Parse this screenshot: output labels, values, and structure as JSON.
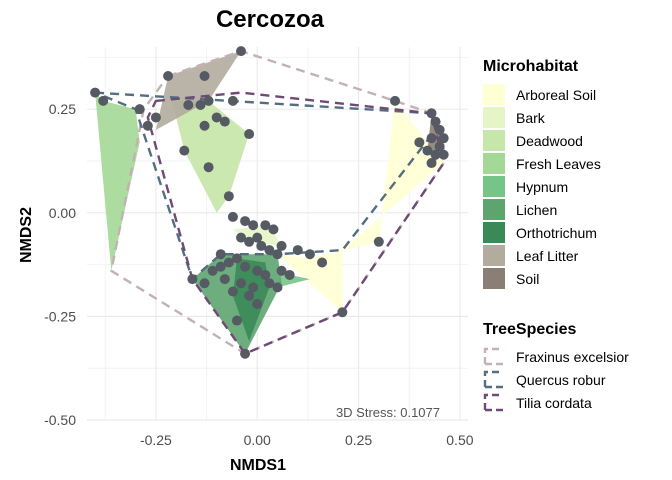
{
  "chart_data": {
    "type": "scatter",
    "title": "Cercozoa",
    "xlabel": "NMDS1",
    "ylabel": "NMDS2",
    "xlim": [
      -0.42,
      0.52
    ],
    "ylim": [
      -0.5,
      0.4
    ],
    "xticks": [
      -0.25,
      0.0,
      0.25,
      0.5
    ],
    "yticks": [
      -0.5,
      -0.25,
      0.0,
      0.25
    ],
    "xtick_labels": [
      "-0.25",
      "0.00",
      "0.25",
      "0.50"
    ],
    "ytick_labels": [
      "-0.50",
      "-0.25",
      "0.00",
      "0.25"
    ],
    "annotation": "3D Stress: 0.1077",
    "grid": true,
    "point_color": "#555a63",
    "points": [
      [
        -0.4,
        0.29
      ],
      [
        -0.38,
        0.27
      ],
      [
        -0.29,
        0.25
      ],
      [
        -0.22,
        0.33
      ],
      [
        -0.13,
        0.33
      ],
      [
        -0.04,
        0.39
      ],
      [
        -0.12,
        0.27
      ],
      [
        -0.17,
        0.26
      ],
      [
        -0.14,
        0.26
      ],
      [
        -0.06,
        0.27
      ],
      [
        -0.25,
        0.23
      ],
      [
        -0.27,
        0.21
      ],
      [
        -0.13,
        0.21
      ],
      [
        -0.1,
        0.23
      ],
      [
        -0.08,
        0.22
      ],
      [
        -0.02,
        0.19
      ],
      [
        -0.18,
        0.15
      ],
      [
        -0.12,
        0.11
      ],
      [
        -0.07,
        0.04
      ],
      [
        -0.06,
        -0.01
      ],
      [
        -0.03,
        -0.02
      ],
      [
        -0.01,
        -0.03
      ],
      [
        -0.04,
        -0.06
      ],
      [
        0.02,
        -0.03
      ],
      [
        0.04,
        -0.04
      ],
      [
        0.0,
        -0.06
      ],
      [
        -0.02,
        -0.07
      ],
      [
        0.01,
        -0.08
      ],
      [
        0.03,
        -0.09
      ],
      [
        0.05,
        -0.1
      ],
      [
        -0.05,
        -0.11
      ],
      [
        -0.07,
        -0.12
      ],
      [
        -0.03,
        -0.13
      ],
      [
        0.0,
        -0.14
      ],
      [
        0.02,
        -0.15
      ],
      [
        -0.09,
        -0.13
      ],
      [
        -0.11,
        -0.14
      ],
      [
        -0.08,
        -0.16
      ],
      [
        -0.04,
        -0.17
      ],
      [
        -0.01,
        -0.18
      ],
      [
        0.03,
        -0.17
      ],
      [
        0.06,
        -0.14
      ],
      [
        0.08,
        -0.15
      ],
      [
        0.05,
        -0.18
      ],
      [
        -0.02,
        -0.2
      ],
      [
        -0.06,
        -0.19
      ],
      [
        -0.09,
        -0.1
      ],
      [
        -0.13,
        -0.17
      ],
      [
        -0.16,
        -0.16
      ],
      [
        -0.05,
        -0.26
      ],
      [
        -0.03,
        -0.34
      ],
      [
        0.0,
        -0.22
      ],
      [
        0.06,
        -0.08
      ],
      [
        0.1,
        -0.09
      ],
      [
        0.13,
        -0.1
      ],
      [
        0.16,
        -0.12
      ],
      [
        0.21,
        -0.24
      ],
      [
        0.3,
        -0.07
      ],
      [
        0.34,
        0.27
      ],
      [
        0.43,
        0.24
      ],
      [
        0.44,
        0.22
      ],
      [
        0.45,
        0.2
      ],
      [
        0.46,
        0.18
      ],
      [
        0.43,
        0.18
      ],
      [
        0.45,
        0.16
      ],
      [
        0.42,
        0.15
      ],
      [
        0.44,
        0.14
      ],
      [
        0.4,
        0.17
      ],
      [
        0.43,
        0.12
      ],
      [
        0.46,
        0.14
      ]
    ],
    "microhabitat_legend_title": "Microhabitat",
    "microhabitat": [
      {
        "name": "Arboreal Soil",
        "color": "#ffffd4",
        "hull": [
          [
            0.34,
            0.27
          ],
          [
            0.46,
            0.12
          ],
          [
            0.21,
            -0.09
          ],
          [
            0.21,
            -0.24
          ],
          [
            0.05,
            -0.1
          ],
          [
            0.13,
            -0.11
          ],
          [
            0.3,
            -0.07
          ]
        ]
      },
      {
        "name": "Bark",
        "color": "#e6f5c6",
        "hull": [
          [
            0.03,
            -0.03
          ],
          [
            -0.06,
            -0.04
          ],
          [
            -0.02,
            -0.07
          ],
          [
            0.06,
            -0.08
          ]
        ]
      },
      {
        "name": "Deadwood",
        "color": "#c7e6a9",
        "hull": [
          [
            -0.12,
            0.27
          ],
          [
            -0.02,
            0.19
          ],
          [
            -0.07,
            0.04
          ],
          [
            -0.1,
            0.0
          ],
          [
            -0.18,
            0.15
          ],
          [
            -0.21,
            0.27
          ]
        ]
      },
      {
        "name": "Fresh Leaves",
        "color": "#a3d896",
        "hull": [
          [
            -0.4,
            0.29
          ],
          [
            -0.38,
            0.27
          ],
          [
            -0.3,
            0.25
          ],
          [
            -0.29,
            0.17
          ],
          [
            -0.36,
            -0.14
          ]
        ]
      },
      {
        "name": "Hypnum",
        "color": "#76c488",
        "hull": [
          [
            0.06,
            -0.14
          ],
          [
            0.08,
            -0.15
          ],
          [
            0.13,
            -0.16
          ],
          [
            0.05,
            -0.18
          ]
        ]
      },
      {
        "name": "Lichen",
        "color": "#5ea46f",
        "hull": [
          [
            -0.09,
            -0.1
          ],
          [
            0.05,
            -0.1
          ],
          [
            0.06,
            -0.17
          ],
          [
            -0.03,
            -0.34
          ],
          [
            -0.16,
            -0.16
          ]
        ]
      },
      {
        "name": "Orthotrichum",
        "color": "#3a8a58",
        "hull": [
          [
            -0.05,
            -0.11
          ],
          [
            0.02,
            -0.12
          ],
          [
            0.03,
            -0.18
          ],
          [
            -0.02,
            -0.31
          ],
          [
            -0.06,
            -0.2
          ]
        ]
      },
      {
        "name": "Leaf Litter",
        "color": "#b3ab9e",
        "hull": [
          [
            -0.22,
            0.33
          ],
          [
            -0.04,
            0.39
          ],
          [
            -0.12,
            0.27
          ],
          [
            -0.25,
            0.2
          ]
        ]
      },
      {
        "name": "Soil",
        "color": "#8a7f74",
        "hull": [
          [
            0.43,
            0.24
          ],
          [
            0.46,
            0.18
          ],
          [
            0.44,
            0.12
          ],
          [
            0.42,
            0.15
          ]
        ]
      }
    ],
    "tree_species_legend_title": "TreeSpecies",
    "tree_species": [
      {
        "name": "Fraxinus excelsior",
        "color": "#c3b1b6",
        "hull": [
          [
            -0.22,
            0.33
          ],
          [
            -0.04,
            0.39
          ],
          [
            0.34,
            0.27
          ],
          [
            0.43,
            0.24
          ],
          [
            0.46,
            0.18
          ],
          [
            0.46,
            0.12
          ],
          [
            0.21,
            -0.24
          ],
          [
            -0.03,
            -0.34
          ],
          [
            -0.36,
            -0.14
          ],
          [
            -0.28,
            0.25
          ]
        ]
      },
      {
        "name": "Quercus robur",
        "color": "#526e80",
        "hull": [
          [
            -0.4,
            0.29
          ],
          [
            0.43,
            0.24
          ],
          [
            0.44,
            0.2
          ],
          [
            0.21,
            -0.09
          ],
          [
            0.05,
            -0.1
          ],
          [
            -0.09,
            -0.1
          ],
          [
            -0.16,
            -0.16
          ],
          [
            -0.3,
            0.25
          ]
        ]
      },
      {
        "name": "Tilia cordata",
        "color": "#6f4a76",
        "hull": [
          [
            -0.25,
            0.27
          ],
          [
            -0.04,
            0.29
          ],
          [
            0.43,
            0.24
          ],
          [
            0.46,
            0.12
          ],
          [
            0.21,
            -0.24
          ],
          [
            -0.03,
            -0.34
          ],
          [
            -0.16,
            -0.16
          ],
          [
            -0.27,
            0.23
          ]
        ]
      }
    ]
  }
}
